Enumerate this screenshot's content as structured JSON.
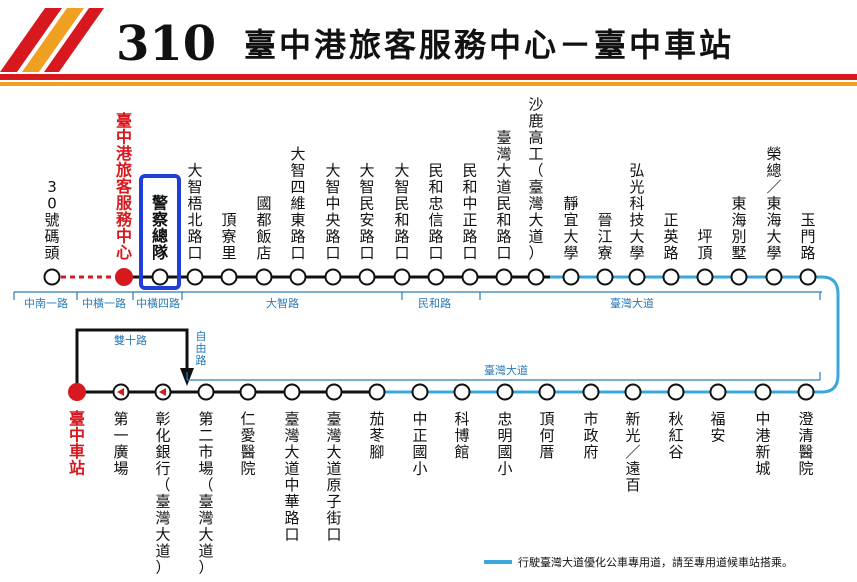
{
  "header": {
    "route_number": "310",
    "route_name": "臺中港旅客服務中心－臺中車站"
  },
  "colors": {
    "accent_red": "#d7191f",
    "accent_orange": "#f0a020",
    "bus_lane_blue": "#3aa8dc",
    "line_black": "#111111",
    "highlight_blue": "#1f3fd8"
  },
  "top_stops": [
    {
      "label": "30號碼頭",
      "type": "normal"
    },
    {
      "label": "臺中港旅客服務中心",
      "type": "terminal"
    },
    {
      "label": "警察總隊",
      "type": "highlight"
    },
    {
      "label": "大智梧北路口",
      "type": "normal"
    },
    {
      "label": "頂寮里",
      "type": "normal"
    },
    {
      "label": "國都飯店",
      "type": "normal"
    },
    {
      "label": "大智四維東路口",
      "type": "normal"
    },
    {
      "label": "大智中央路口",
      "type": "normal"
    },
    {
      "label": "大智民安路口",
      "type": "normal"
    },
    {
      "label": "大智民和路口",
      "type": "normal"
    },
    {
      "label": "民和忠信路口",
      "type": "normal"
    },
    {
      "label": "民和中正路口",
      "type": "normal"
    },
    {
      "label": "臺灣大道民和路口",
      "type": "normal"
    },
    {
      "label": "沙鹿高工（臺灣大道）",
      "type": "normal"
    },
    {
      "label": "靜宜大學",
      "type": "normal"
    },
    {
      "label": "晉江寮",
      "type": "normal"
    },
    {
      "label": "弘光科技大學",
      "type": "normal"
    },
    {
      "label": "正英路",
      "type": "normal"
    },
    {
      "label": "坪頂",
      "type": "normal"
    },
    {
      "label": "東海別墅",
      "type": "normal"
    },
    {
      "label": "榮總／東海大學",
      "type": "normal"
    },
    {
      "label": "玉門路",
      "type": "normal"
    }
  ],
  "bottom_stops": [
    {
      "label": "臺中車站",
      "type": "terminal"
    },
    {
      "label": "第一廣場",
      "type": "oneway"
    },
    {
      "label": "彰化銀行（臺灣大道）",
      "type": "oneway"
    },
    {
      "label": "第二市場（臺灣大道）",
      "type": "normal"
    },
    {
      "label": "仁愛醫院",
      "type": "normal"
    },
    {
      "label": "臺灣大道中華路口",
      "type": "normal"
    },
    {
      "label": "臺灣大道原子街口",
      "type": "normal"
    },
    {
      "label": "茄苳腳",
      "type": "normal"
    },
    {
      "label": "中正國小",
      "type": "normal"
    },
    {
      "label": "科博館",
      "type": "normal"
    },
    {
      "label": "忠明國小",
      "type": "normal"
    },
    {
      "label": "頂何厝",
      "type": "normal"
    },
    {
      "label": "市政府",
      "type": "normal"
    },
    {
      "label": "新光／遠百",
      "type": "normal"
    },
    {
      "label": "秋紅谷",
      "type": "normal"
    },
    {
      "label": "福安",
      "type": "normal"
    },
    {
      "label": "中港新城",
      "type": "normal"
    },
    {
      "label": "澄清醫院",
      "type": "normal"
    }
  ],
  "roads": {
    "top": [
      "中南一路",
      "中橫一路",
      "中橫四路",
      "大智路",
      "民和路",
      "臺灣大道"
    ],
    "bottom": [
      "臺灣大道"
    ],
    "detour": [
      "雙十路",
      "自由路"
    ]
  },
  "legend": {
    "text": "行駛臺灣大道優化公車專用道，請至專用道候車站搭乘。"
  }
}
